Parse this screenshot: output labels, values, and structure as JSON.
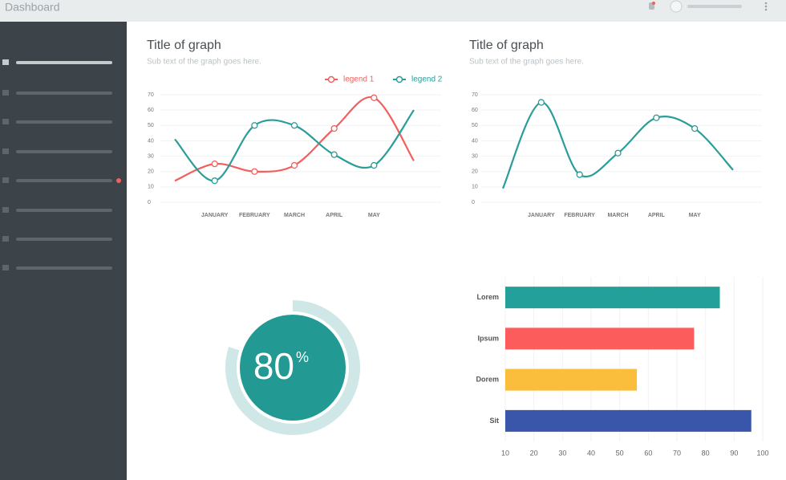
{
  "header": {
    "title": "Dashboard"
  },
  "chart_data": [
    {
      "type": "line",
      "title": "Title of graph",
      "subtitle": "Sub text of the graph goes here.",
      "categories": [
        null,
        "JANUARY",
        "FEBRUARY",
        "MARCH",
        "APRIL",
        "MAY",
        null
      ],
      "series": [
        {
          "name": "legend 1",
          "color": "#f25f5c",
          "values": [
            14,
            25,
            20,
            24,
            48,
            68,
            27
          ]
        },
        {
          "name": "legend 2",
          "color": "#2a9d99",
          "values": [
            41,
            14,
            50,
            50,
            31,
            24,
            60
          ]
        }
      ],
      "ylim": [
        0,
        70
      ],
      "yticks": [
        0,
        10,
        20,
        30,
        40,
        50,
        60,
        70
      ],
      "grid": true
    },
    {
      "type": "line",
      "title": "Title of graph",
      "subtitle": "Sub text of the graph goes here.",
      "categories": [
        null,
        "JANUARY",
        "FEBRUARY",
        "MARCH",
        "APRIL",
        "MAY",
        null
      ],
      "series": [
        {
          "color": "#2a9d99",
          "values": [
            9,
            65,
            18,
            32,
            55,
            48,
            21
          ]
        }
      ],
      "ylim": [
        0,
        70
      ],
      "yticks": [
        0,
        10,
        20,
        30,
        40,
        50,
        60,
        70
      ],
      "grid": true
    },
    {
      "type": "donut",
      "value": 80,
      "unit": "%",
      "color": "#229a93",
      "track_color": "#cfe7e7"
    },
    {
      "type": "hbar",
      "categories": [
        "Lorem",
        "Ipsum",
        "Dorem",
        "Sit"
      ],
      "values": [
        85,
        76,
        56,
        96
      ],
      "colors": [
        "#24a09a",
        "#fc5c5c",
        "#fbbd3c",
        "#3956ab"
      ],
      "xlim": [
        10,
        100
      ],
      "xticks": [
        10,
        20,
        30,
        40,
        50,
        60,
        70,
        80,
        90,
        100
      ],
      "grid": true
    }
  ]
}
